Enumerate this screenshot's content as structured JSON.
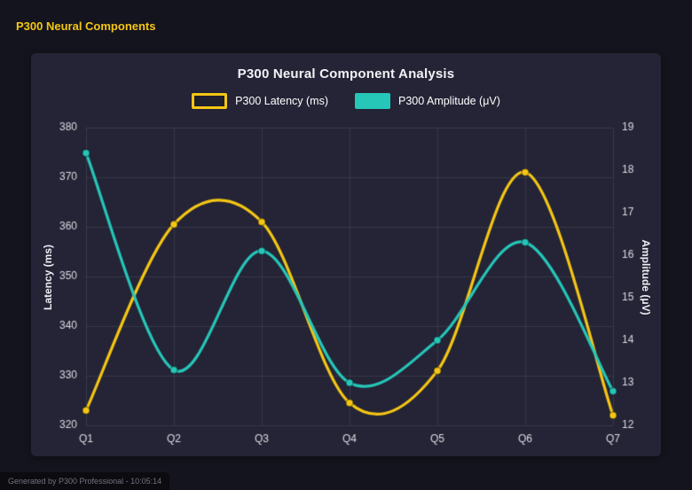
{
  "page": {
    "header_title": "P300 Neural Components",
    "footer_text": "Generated by P300 Professional - 10:05:14"
  },
  "colors": {
    "accent_yellow": "#f5c614",
    "accent_teal": "#26c6b9",
    "background": "#14141e",
    "panel": "#242436"
  },
  "chart_data": {
    "type": "line",
    "title": "P300 Neural Component Analysis",
    "categories": [
      "Q1",
      "Q2",
      "Q3",
      "Q4",
      "Q5",
      "Q6",
      "Q7"
    ],
    "series": [
      {
        "name": "P300 Latency (ms)",
        "axis": "left",
        "color": "#f5c614",
        "swatch_fill": "#20202f",
        "values": [
          323,
          360.5,
          361,
          324.5,
          331,
          371,
          322
        ]
      },
      {
        "name": "P300 Amplitude (μV)",
        "axis": "right",
        "color": "#26c6b9",
        "swatch_fill": "#26c6b9",
        "values": [
          18.4,
          13.3,
          16.1,
          13.0,
          14.0,
          16.3,
          12.8
        ]
      }
    ],
    "left_axis": {
      "label": "Latency (ms)",
      "min": 320,
      "max": 380,
      "step": 10
    },
    "right_axis": {
      "label": "Amplitude (μV)",
      "min": 12,
      "max": 19,
      "step": 1
    },
    "grid": true,
    "legend_position": "top"
  }
}
